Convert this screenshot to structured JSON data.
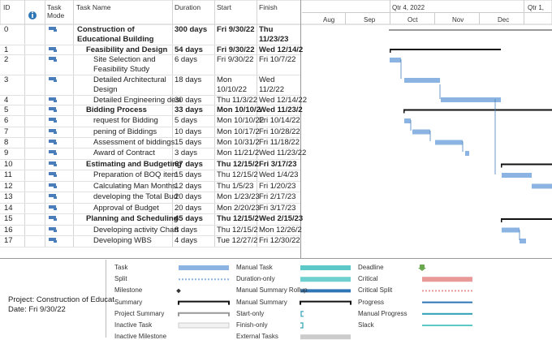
{
  "columns": {
    "id": "ID",
    "task_mode": "Task Mode",
    "task_name": "Task Name",
    "duration": "Duration",
    "start": "Start",
    "finish": "Finish"
  },
  "timeline": {
    "quarters": [
      "Qtr 4, 2022",
      "Qtr 1,"
    ],
    "months": [
      "Aug",
      "Sep",
      "Oct",
      "Nov",
      "Dec"
    ]
  },
  "rows": [
    {
      "id": "0",
      "name": "Construction of Educational Building",
      "duration": "300 days",
      "start": "Fri 9/30/22",
      "finish": "Thu 11/23/23"
    },
    {
      "id": "1",
      "name": "Feasibility and Design",
      "duration": "54 days",
      "start": "Fri 9/30/22",
      "finish": "Wed 12/14/2"
    },
    {
      "id": "2",
      "name": "Site Selection and Feasibility Study",
      "duration": "6 days",
      "start": "Fri 9/30/22",
      "finish": "Fri 10/7/22"
    },
    {
      "id": "3",
      "name": "Detailed Architectural Design",
      "duration": "18 days",
      "start": "Mon 10/10/22",
      "finish": "Wed 11/2/22"
    },
    {
      "id": "4",
      "name": "Detailed Engineering desi",
      "duration": "30 days",
      "start": "Thu 11/3/22",
      "finish": "Wed 12/14/22"
    },
    {
      "id": "5",
      "name": "Bidding Process",
      "duration": "33 days",
      "start": "Mon 10/10/2",
      "finish": "Wed 11/23/2"
    },
    {
      "id": "6",
      "name": "request for Bidding",
      "duration": "5 days",
      "start": "Mon 10/10/22",
      "finish": "Fri 10/14/22"
    },
    {
      "id": "7",
      "name": "pening of Biddings",
      "duration": "10 days",
      "start": "Mon 10/17/2",
      "finish": "Fri 10/28/22"
    },
    {
      "id": "8",
      "name": "Assessment of biddings",
      "duration": "15 days",
      "start": "Mon 10/31/2",
      "finish": "Fri 11/18/22"
    },
    {
      "id": "9",
      "name": "Award of Contract",
      "duration": "3 days",
      "start": "Mon 11/21/2",
      "finish": "Wed 11/23/22"
    },
    {
      "id": "10",
      "name": "Estimating and Budgeting",
      "duration": "67 days",
      "start": "Thu 12/15/2",
      "finish": "Fri 3/17/23"
    },
    {
      "id": "11",
      "name": "Preparation of BOQ item",
      "duration": "15 days",
      "start": "Thu 12/15/2",
      "finish": "Wed 1/4/23"
    },
    {
      "id": "12",
      "name": "Calculating Man Months",
      "duration": "12 days",
      "start": "Thu 1/5/23",
      "finish": "Fri 1/20/23"
    },
    {
      "id": "13",
      "name": "developing the Total Bud",
      "duration": "20 days",
      "start": "Mon 1/23/23",
      "finish": "Fri 2/17/23"
    },
    {
      "id": "14",
      "name": "Approval of Budget",
      "duration": "20 days",
      "start": "Mon 2/20/23",
      "finish": "Fri 3/17/23"
    },
    {
      "id": "15",
      "name": "Planning and Scheduling",
      "duration": "45 days",
      "start": "Thu 12/15/2",
      "finish": "Wed 2/15/23"
    },
    {
      "id": "16",
      "name": "Developing activity Chart",
      "duration": "8 days",
      "start": "Thu 12/15/2",
      "finish": "Mon 12/26/2"
    },
    {
      "id": "17",
      "name": "Developing WBS",
      "duration": "4 days",
      "start": "Tue 12/27/2",
      "finish": "Fri 12/30/22"
    }
  ],
  "project": {
    "name": "Project: Construction of Educat",
    "date": "Date: Fri 9/30/22"
  },
  "legend": [
    [
      "Task",
      "Split",
      "Milestone",
      "Summary",
      "Project Summary",
      "Inactive Task",
      "Inactive Milestone"
    ],
    [
      "Manual Task",
      "Duration-only",
      "Manual Summary Rollup",
      "Manual Summary",
      "Start-only",
      "Finish-only",
      "External Tasks"
    ],
    [
      "Deadline",
      "Critical",
      "Critical Split",
      "Progress",
      "Manual Progress",
      "Slack"
    ]
  ]
}
